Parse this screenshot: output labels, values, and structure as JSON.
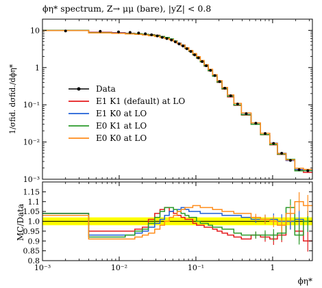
{
  "chart_data": {
    "type": "line",
    "title": "ϕη* spectrum, Z→ μμ (bare), |yZ| < 0.8",
    "xlabel": "ϕη*",
    "ylabel": "1/σfid. dσfid./dϕη*",
    "ratio_ylabel": "MC/Data",
    "x_scale": "log",
    "y_scale": "log",
    "xlim": [
      0.001,
      3.3
    ],
    "ylim": [
      0.001,
      20
    ],
    "ratio_ylim": [
      0.8,
      1.2
    ],
    "x_ticks": [
      {
        "v": 0.001,
        "label": "10⁻³"
      },
      {
        "v": 0.01,
        "label": "10⁻²"
      },
      {
        "v": 0.1,
        "label": "10⁻¹"
      },
      {
        "v": 1,
        "label": "1"
      }
    ],
    "y_ticks": [
      {
        "v": 10,
        "label": "10"
      },
      {
        "v": 1,
        "label": "1"
      },
      {
        "v": 0.1,
        "label": "10⁻¹"
      },
      {
        "v": 0.01,
        "label": "10⁻²"
      },
      {
        "v": 0.001,
        "label": "10⁻³"
      }
    ],
    "ratio_ticks": [
      {
        "v": 1.15,
        "label": "1.15"
      },
      {
        "v": 1.1,
        "label": "1.1"
      },
      {
        "v": 1.05,
        "label": "1.05"
      },
      {
        "v": 1.0,
        "label": "1.0"
      },
      {
        "v": 0.95,
        "label": "0.95"
      },
      {
        "v": 0.9,
        "label": "0.9"
      },
      {
        "v": 0.85,
        "label": "0.85"
      },
      {
        "v": 0.8,
        "label": "0.8"
      }
    ],
    "legend_position": "center-left",
    "bin_edges": [
      0.001,
      0.004,
      0.008,
      0.012,
      0.016,
      0.02,
      0.024,
      0.029,
      0.034,
      0.039,
      0.045,
      0.051,
      0.057,
      0.064,
      0.072,
      0.081,
      0.091,
      0.102,
      0.114,
      0.128,
      0.145,
      0.165,
      0.189,
      0.219,
      0.258,
      0.312,
      0.391,
      0.524,
      0.695,
      0.918,
      1.153,
      1.496,
      1.947,
      2.522,
      3.277
    ],
    "data": {
      "name": "Data",
      "color": "#000000",
      "values": [
        9.6,
        9.4,
        9.1,
        8.8,
        8.5,
        8.1,
        7.6,
        7.1,
        6.5,
        6.0,
        5.5,
        4.9,
        4.3,
        3.8,
        3.2,
        2.7,
        2.2,
        1.82,
        1.45,
        1.12,
        0.84,
        0.61,
        0.42,
        0.28,
        0.175,
        0.105,
        0.058,
        0.032,
        0.017,
        0.0092,
        0.005,
        0.0032,
        0.0018,
        0.0017
      ],
      "ratio_band": 0.02
    },
    "series": [
      {
        "name": "E1 K1 (default) at LO",
        "color": "#e41a1c",
        "ratio": [
          1.04,
          0.95,
          0.95,
          0.95,
          0.96,
          0.97,
          1.01,
          1.04,
          1.06,
          1.07,
          1.05,
          1.04,
          1.03,
          1.02,
          1.01,
          1.01,
          0.99,
          0.98,
          0.98,
          0.97,
          0.97,
          0.96,
          0.95,
          0.94,
          0.93,
          0.92,
          0.91,
          0.93,
          0.92,
          0.91,
          0.93,
          1.0,
          0.95,
          0.9
        ]
      },
      {
        "name": "E1 K0 at LO",
        "color": "#1f5fd6",
        "ratio": [
          1.04,
          0.93,
          0.93,
          0.93,
          0.94,
          0.95,
          0.97,
          0.99,
          1.01,
          1.03,
          1.05,
          1.06,
          1.06,
          1.07,
          1.06,
          1.05,
          1.05,
          1.05,
          1.04,
          1.04,
          1.04,
          1.04,
          1.04,
          1.03,
          1.03,
          1.03,
          1.02,
          1.01,
          1.01,
          1.01,
          1.0,
          1.0,
          1.01,
          1.0
        ]
      },
      {
        "name": "E0 K1 at LO",
        "color": "#2a9a2a",
        "ratio": [
          1.04,
          0.92,
          0.92,
          0.93,
          0.95,
          0.96,
          0.99,
          1.02,
          1.05,
          1.07,
          1.07,
          1.06,
          1.05,
          1.04,
          1.03,
          1.02,
          1.02,
          1.0,
          0.99,
          0.99,
          0.98,
          0.97,
          0.97,
          0.96,
          0.96,
          0.94,
          0.93,
          0.93,
          0.93,
          0.93,
          0.94,
          1.07,
          0.93,
          1.0
        ]
      },
      {
        "name": "E0 K0 at LO",
        "color": "#ff8c1a",
        "ratio": [
          1.03,
          0.91,
          0.91,
          0.91,
          0.92,
          0.93,
          0.94,
          0.96,
          0.98,
          1.0,
          1.02,
          1.03,
          1.05,
          1.06,
          1.07,
          1.07,
          1.08,
          1.08,
          1.07,
          1.07,
          1.07,
          1.06,
          1.06,
          1.05,
          1.05,
          1.04,
          1.04,
          1.02,
          1.01,
          1.0,
          0.98,
          1.04,
          1.1,
          1.08
        ]
      }
    ]
  }
}
